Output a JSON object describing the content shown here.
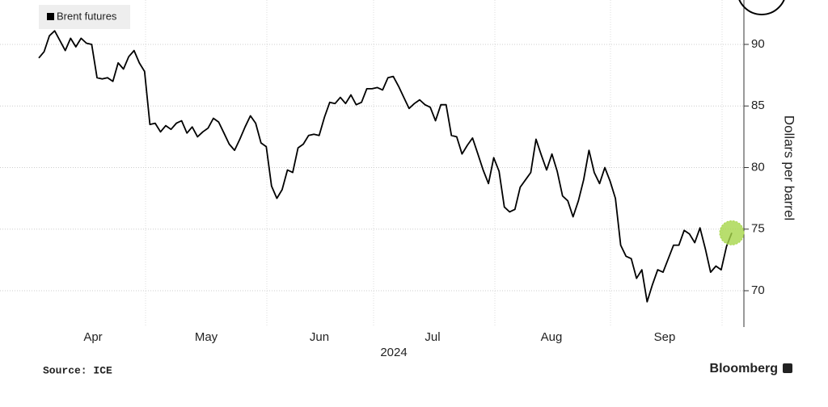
{
  "chart_data": {
    "type": "line",
    "y_axis_label": "Dollars per barrel",
    "x_axis_label": "2024",
    "month_labels": [
      "Apr",
      "May",
      "Jun",
      "Jul",
      "Aug",
      "Sep"
    ],
    "source": "Source: ICE",
    "brand": "Bloomberg",
    "ylim": [
      67,
      93.5
    ],
    "yticks": [
      70,
      75,
      80,
      85,
      90
    ],
    "grid": true,
    "highlight_color": "#a6d64a",
    "series": [
      {
        "name": "Brent futures",
        "color": "#000000",
        "values": [
          88.9,
          89.4,
          90.7,
          91.1,
          90.3,
          89.5,
          90.5,
          89.8,
          90.5,
          90.1,
          90.0,
          87.3,
          87.2,
          87.3,
          87.0,
          88.5,
          88.0,
          89.0,
          89.5,
          88.5,
          87.8,
          83.5,
          83.6,
          82.9,
          83.4,
          83.1,
          83.6,
          83.8,
          82.8,
          83.3,
          82.5,
          82.9,
          83.2,
          84.0,
          83.7,
          82.8,
          81.9,
          81.4,
          82.3,
          83.3,
          84.2,
          83.6,
          82.0,
          81.7,
          78.5,
          77.5,
          78.2,
          79.8,
          79.6,
          81.6,
          81.9,
          82.6,
          82.7,
          82.6,
          84.1,
          85.3,
          85.2,
          85.7,
          85.2,
          85.9,
          85.1,
          85.3,
          86.4,
          86.4,
          86.5,
          86.3,
          87.3,
          87.4,
          86.6,
          85.7,
          84.8,
          85.2,
          85.5,
          85.1,
          84.9,
          83.8,
          85.1,
          85.1,
          82.6,
          82.5,
          81.1,
          81.8,
          82.4,
          81.1,
          79.8,
          78.7,
          80.8,
          79.7,
          76.8,
          76.4,
          76.6,
          78.4,
          79.0,
          79.6,
          82.3,
          81.0,
          79.8,
          81.1,
          79.7,
          77.7,
          77.3,
          76.0,
          77.3,
          79.0,
          81.4,
          79.6,
          78.7,
          80.0,
          78.9,
          77.5,
          73.7,
          72.8,
          72.6,
          71.0,
          71.7,
          69.1,
          70.5,
          71.7,
          71.5,
          72.6,
          73.7,
          73.7,
          74.9,
          74.6,
          73.9,
          75.1,
          73.4,
          71.5,
          72.0,
          71.7,
          73.6,
          74.7
        ]
      }
    ]
  }
}
